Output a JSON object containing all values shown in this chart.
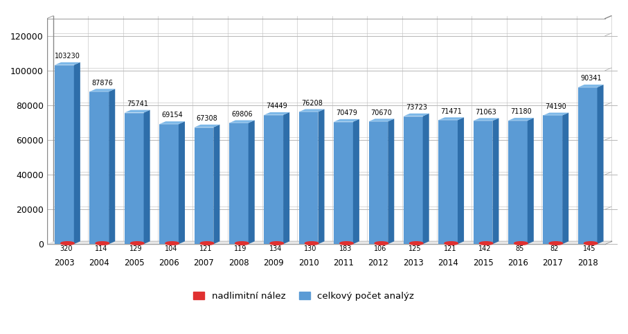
{
  "years": [
    "2003",
    "2004",
    "2005",
    "2006",
    "2007",
    "2008",
    "2009",
    "2010",
    "2011",
    "2012",
    "2013",
    "2014",
    "2015",
    "2016",
    "2017",
    "2018"
  ],
  "total": [
    0,
    103230,
    87876,
    75741,
    69154,
    67308,
    69806,
    74449,
    76208,
    70479,
    70670,
    73723,
    71471,
    71063,
    71180,
    74190,
    90341
  ],
  "over_limit": [
    320,
    114,
    129,
    104,
    121,
    119,
    134,
    130,
    183,
    106,
    125,
    121,
    142,
    85,
    82,
    145
  ],
  "total_vals": [
    103230,
    87876,
    75741,
    69154,
    67308,
    69806,
    74449,
    76208,
    70479,
    70670,
    73723,
    71471,
    71063,
    71180,
    74190,
    90341
  ],
  "bar_color_blue": "#5B9BD5",
  "bar_color_blue_dark": "#2E6EAA",
  "bar_color_blue_top": "#7DB8E8",
  "bar_color_red": "#E03030",
  "background_color": "#FFFFFF",
  "legend_nadlimitni": "nadlimitní nález",
  "legend_celkovy": "celkový počet analýz",
  "yticks": [
    0,
    20000,
    40000,
    60000,
    80000,
    100000,
    120000
  ],
  "ymax": 130000
}
